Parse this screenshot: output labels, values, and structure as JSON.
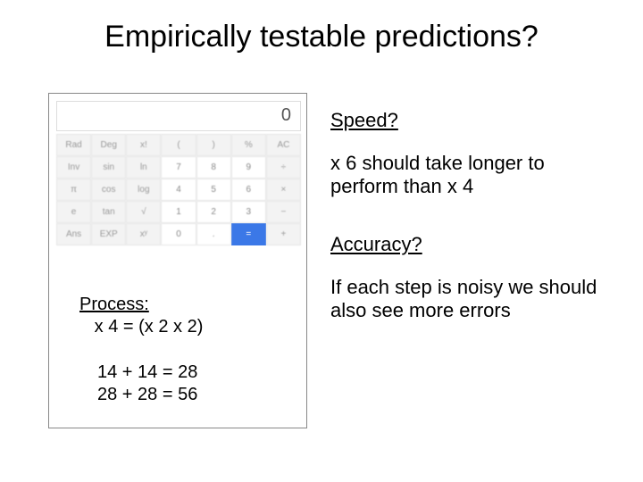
{
  "title": "Empirically testable predictions?",
  "calculator": {
    "display_value": "0",
    "text_color": "#555555",
    "bg_color": "#ffffff",
    "border_color": "#dddddd",
    "button_bg": "#f7f7f7",
    "button_num_bg": "#ffffff",
    "button_eq_bg": "#3b78e7",
    "button_text_color": "#999999",
    "layout": "7x5",
    "rows": [
      [
        "Rad",
        "Deg",
        "x!",
        "(",
        ")",
        "%",
        "AC"
      ],
      [
        "Inv",
        "sin",
        "ln",
        "7",
        "8",
        "9",
        "÷"
      ],
      [
        "π",
        "cos",
        "log",
        "4",
        "5",
        "6",
        "×"
      ],
      [
        "e",
        "tan",
        "√",
        "1",
        "2",
        "3",
        "−"
      ],
      [
        "Ans",
        "EXP",
        "xʸ",
        "0",
        ".",
        "=",
        "+"
      ]
    ]
  },
  "process": {
    "title": "Process:",
    "line": "x 4 = (x 2 x 2)"
  },
  "example": {
    "line1": "14 + 14  =  28",
    "line2": "28 + 28  =  56"
  },
  "right": {
    "speed_heading": "Speed?",
    "speed_text": "x 6 should take longer to perform than x 4",
    "accuracy_heading": "Accuracy?",
    "accuracy_text": "If each step is noisy we should also see more errors"
  },
  "colors": {
    "page_bg": "#ffffff",
    "text": "#000000",
    "box_border": "#888888"
  },
  "fontsizes": {
    "title": 34,
    "body": 22,
    "process": 20,
    "calc_display": 20,
    "calc_btn": 10
  }
}
